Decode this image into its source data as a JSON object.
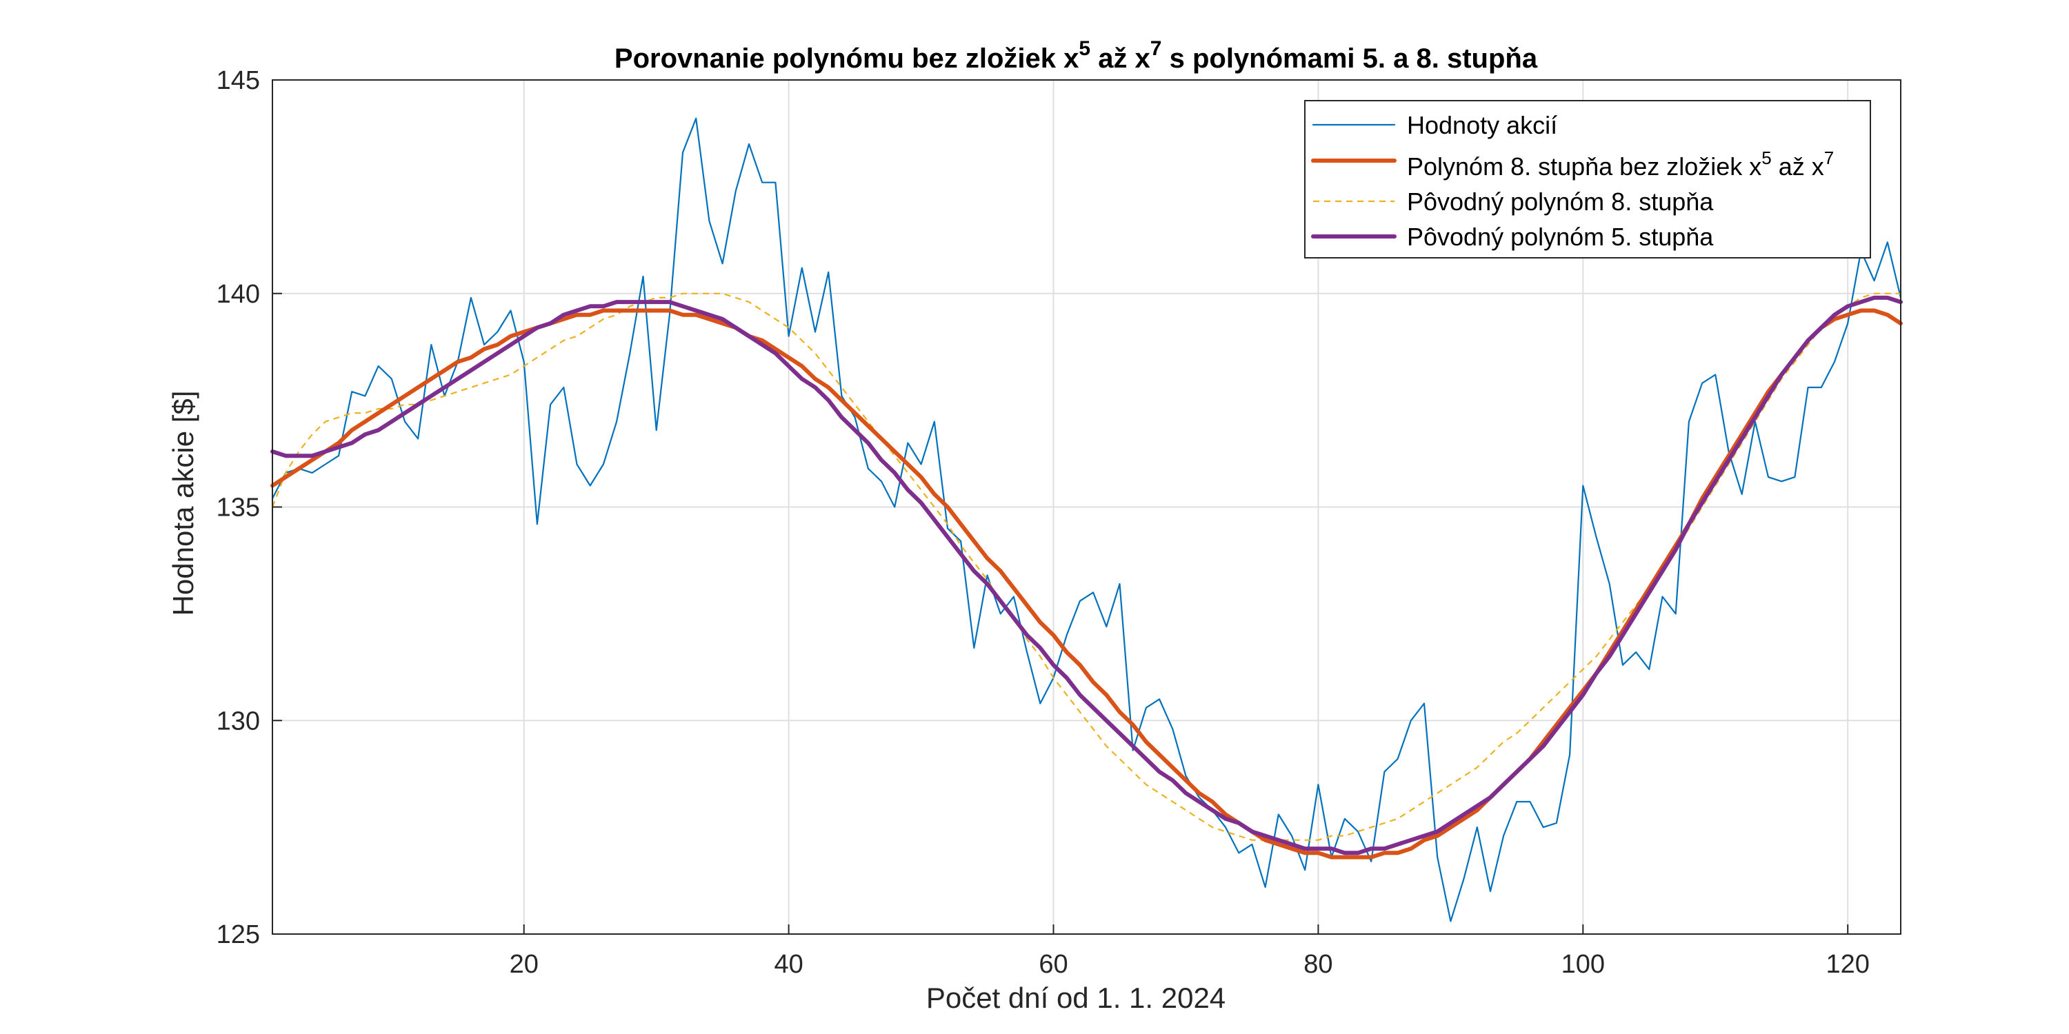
{
  "chart_data": {
    "type": "line",
    "title": {
      "part1": "Porovnanie polynómu bez zložiek x",
      "sup1": "5",
      "part2": " až x",
      "sup2": "7",
      "part3": " s polynómami 5. a 8. stupňa"
    },
    "xlabel": "Počet dní od 1. 1. 2024",
    "ylabel": "Hodnota akcie [$]",
    "xlim": [
      1,
      124
    ],
    "ylim": [
      125,
      145
    ],
    "xticks": [
      20,
      40,
      60,
      80,
      100,
      120
    ],
    "yticks": [
      125,
      130,
      135,
      140,
      145
    ],
    "grid": true,
    "legend_position": "top-right",
    "x": [
      1,
      2,
      3,
      4,
      5,
      6,
      7,
      8,
      9,
      10,
      11,
      12,
      13,
      14,
      15,
      16,
      17,
      18,
      19,
      20,
      21,
      22,
      23,
      24,
      25,
      26,
      27,
      28,
      29,
      30,
      31,
      32,
      33,
      34,
      35,
      36,
      37,
      38,
      39,
      40,
      41,
      42,
      43,
      44,
      45,
      46,
      47,
      48,
      49,
      50,
      51,
      52,
      53,
      54,
      55,
      56,
      57,
      58,
      59,
      60,
      61,
      62,
      63,
      64,
      65,
      66,
      67,
      68,
      69,
      70,
      71,
      72,
      73,
      74,
      75,
      76,
      77,
      78,
      79,
      80,
      81,
      82,
      83,
      84,
      85,
      86,
      87,
      88,
      89,
      90,
      91,
      92,
      93,
      94,
      95,
      96,
      97,
      98,
      99,
      100,
      101,
      102,
      103,
      104,
      105,
      106,
      107,
      108,
      109,
      110,
      111,
      112,
      113,
      114,
      115,
      116,
      117,
      118,
      119,
      120,
      121,
      122,
      123,
      124
    ],
    "series": [
      {
        "name": "Hodnoty akcií",
        "color": "#0072BD",
        "style": "thin",
        "values": [
          135.2,
          135.8,
          135.9,
          135.8,
          136.0,
          136.2,
          137.7,
          137.6,
          138.3,
          138.0,
          137.0,
          136.6,
          138.8,
          137.6,
          138.4,
          139.9,
          138.8,
          139.1,
          139.6,
          138.4,
          134.6,
          137.4,
          137.8,
          136.0,
          135.5,
          136.0,
          137.0,
          138.6,
          140.4,
          136.8,
          139.5,
          143.3,
          144.1,
          141.7,
          140.7,
          142.4,
          143.5,
          142.6,
          142.6,
          139.0,
          140.6,
          139.1,
          140.5,
          137.6,
          137.1,
          135.9,
          135.6,
          135.0,
          136.5,
          136.0,
          137.0,
          134.5,
          134.2,
          131.7,
          133.4,
          132.5,
          132.9,
          131.6,
          130.4,
          131.0,
          132.0,
          132.8,
          133.0,
          132.2,
          133.2,
          129.3,
          130.3,
          130.5,
          129.8,
          128.7,
          128.2,
          127.9,
          127.5,
          126.9,
          127.1,
          126.1,
          127.8,
          127.3,
          126.5,
          128.5,
          126.8,
          127.7,
          127.4,
          126.7,
          128.8,
          129.1,
          130.0,
          130.4,
          126.8,
          125.3,
          126.3,
          127.5,
          126.0,
          127.3,
          128.1,
          128.1,
          127.5,
          127.6,
          129.2,
          135.5,
          134.3,
          133.2,
          131.3,
          131.6,
          131.2,
          132.9,
          132.5,
          137.0,
          137.9,
          138.1,
          136.3,
          135.3,
          137.0,
          135.7,
          135.6,
          135.7,
          137.8,
          137.8,
          138.4,
          139.3,
          141.0,
          140.3,
          141.2,
          139.9
        ]
      },
      {
        "name": "Polynóm 8. stupňa bez zložiek x^5 až x^7",
        "legend_main": "Polynóm 8. stupňa bez zložiek x",
        "legend_sup1": "5",
        "legend_mid": " až x",
        "legend_sup2": "7",
        "color": "#D95319",
        "style": "thick",
        "values": [
          135.5,
          135.7,
          135.9,
          136.1,
          136.3,
          136.5,
          136.8,
          137.0,
          137.2,
          137.4,
          137.6,
          137.8,
          138.0,
          138.2,
          138.4,
          138.5,
          138.7,
          138.8,
          139.0,
          139.1,
          139.2,
          139.3,
          139.4,
          139.5,
          139.5,
          139.6,
          139.6,
          139.6,
          139.6,
          139.6,
          139.6,
          139.5,
          139.5,
          139.4,
          139.3,
          139.2,
          139.0,
          138.9,
          138.7,
          138.5,
          138.3,
          138.0,
          137.8,
          137.5,
          137.2,
          136.9,
          136.6,
          136.3,
          136.0,
          135.7,
          135.3,
          135.0,
          134.6,
          134.2,
          133.8,
          133.5,
          133.1,
          132.7,
          132.3,
          132.0,
          131.6,
          131.3,
          130.9,
          130.6,
          130.2,
          129.9,
          129.5,
          129.2,
          128.9,
          128.6,
          128.3,
          128.1,
          127.8,
          127.6,
          127.4,
          127.2,
          127.1,
          127.0,
          126.9,
          126.9,
          126.8,
          126.8,
          126.8,
          126.8,
          126.9,
          126.9,
          127.0,
          127.2,
          127.3,
          127.5,
          127.7,
          127.9,
          128.2,
          128.5,
          128.8,
          129.1,
          129.5,
          129.9,
          130.3,
          130.7,
          131.1,
          131.6,
          132.1,
          132.6,
          133.1,
          133.6,
          134.1,
          134.6,
          135.2,
          135.7,
          136.2,
          136.7,
          137.2,
          137.7,
          138.1,
          138.5,
          138.9,
          139.2,
          139.4,
          139.5,
          139.6,
          139.6,
          139.5,
          139.3
        ]
      },
      {
        "name": "Pôvodný polynóm 8. stupňa",
        "color": "#EDB120",
        "style": "dashed",
        "values": [
          135.0,
          135.8,
          136.3,
          136.7,
          137.0,
          137.1,
          137.2,
          137.2,
          137.3,
          137.3,
          137.4,
          137.4,
          137.5,
          137.6,
          137.7,
          137.8,
          137.9,
          138.0,
          138.1,
          138.3,
          138.5,
          138.7,
          138.9,
          139.0,
          139.2,
          139.4,
          139.5,
          139.7,
          139.8,
          139.9,
          139.9,
          140.0,
          140.0,
          140.0,
          140.0,
          139.9,
          139.8,
          139.6,
          139.4,
          139.2,
          138.9,
          138.6,
          138.2,
          137.8,
          137.4,
          137.0,
          136.6,
          136.2,
          135.8,
          135.4,
          135.0,
          134.6,
          134.1,
          133.7,
          133.3,
          132.8,
          132.4,
          131.9,
          131.5,
          131.0,
          130.6,
          130.2,
          129.8,
          129.4,
          129.1,
          128.8,
          128.5,
          128.3,
          128.1,
          127.9,
          127.7,
          127.5,
          127.4,
          127.3,
          127.2,
          127.2,
          127.2,
          127.2,
          127.2,
          127.2,
          127.3,
          127.3,
          127.4,
          127.5,
          127.6,
          127.7,
          127.9,
          128.1,
          128.3,
          128.5,
          128.7,
          128.9,
          129.2,
          129.5,
          129.7,
          130.0,
          130.3,
          130.6,
          130.9,
          131.2,
          131.5,
          131.9,
          132.3,
          132.7,
          133.1,
          133.5,
          134.0,
          134.5,
          135.0,
          135.5,
          136.0,
          136.5,
          137.0,
          137.5,
          138.0,
          138.4,
          138.8,
          139.2,
          139.5,
          139.7,
          139.9,
          140.0,
          140.0,
          140.0
        ]
      },
      {
        "name": "Pôvodný polynóm 5. stupňa",
        "color": "#7E2F8E",
        "style": "thick",
        "values": [
          136.3,
          136.2,
          136.2,
          136.2,
          136.3,
          136.4,
          136.5,
          136.7,
          136.8,
          137.0,
          137.2,
          137.4,
          137.6,
          137.8,
          138.0,
          138.2,
          138.4,
          138.6,
          138.8,
          139.0,
          139.2,
          139.3,
          139.5,
          139.6,
          139.7,
          139.7,
          139.8,
          139.8,
          139.8,
          139.8,
          139.8,
          139.7,
          139.6,
          139.5,
          139.4,
          139.2,
          139.0,
          138.8,
          138.6,
          138.3,
          138.0,
          137.8,
          137.5,
          137.1,
          136.8,
          136.5,
          136.1,
          135.8,
          135.4,
          135.1,
          134.7,
          134.3,
          133.9,
          133.5,
          133.2,
          132.8,
          132.4,
          132.0,
          131.7,
          131.3,
          131.0,
          130.6,
          130.3,
          130.0,
          129.7,
          129.4,
          129.1,
          128.8,
          128.6,
          128.3,
          128.1,
          127.9,
          127.7,
          127.6,
          127.4,
          127.3,
          127.2,
          127.1,
          127.0,
          127.0,
          127.0,
          126.9,
          126.9,
          127.0,
          127.0,
          127.1,
          127.2,
          127.3,
          127.4,
          127.6,
          127.8,
          128.0,
          128.2,
          128.5,
          128.8,
          129.1,
          129.4,
          129.8,
          130.2,
          130.6,
          131.1,
          131.5,
          132.0,
          132.5,
          133.0,
          133.5,
          134.0,
          134.6,
          135.1,
          135.6,
          136.1,
          136.6,
          137.1,
          137.6,
          138.1,
          138.5,
          138.9,
          139.2,
          139.5,
          139.7,
          139.8,
          139.9,
          139.9,
          139.8
        ]
      }
    ]
  }
}
